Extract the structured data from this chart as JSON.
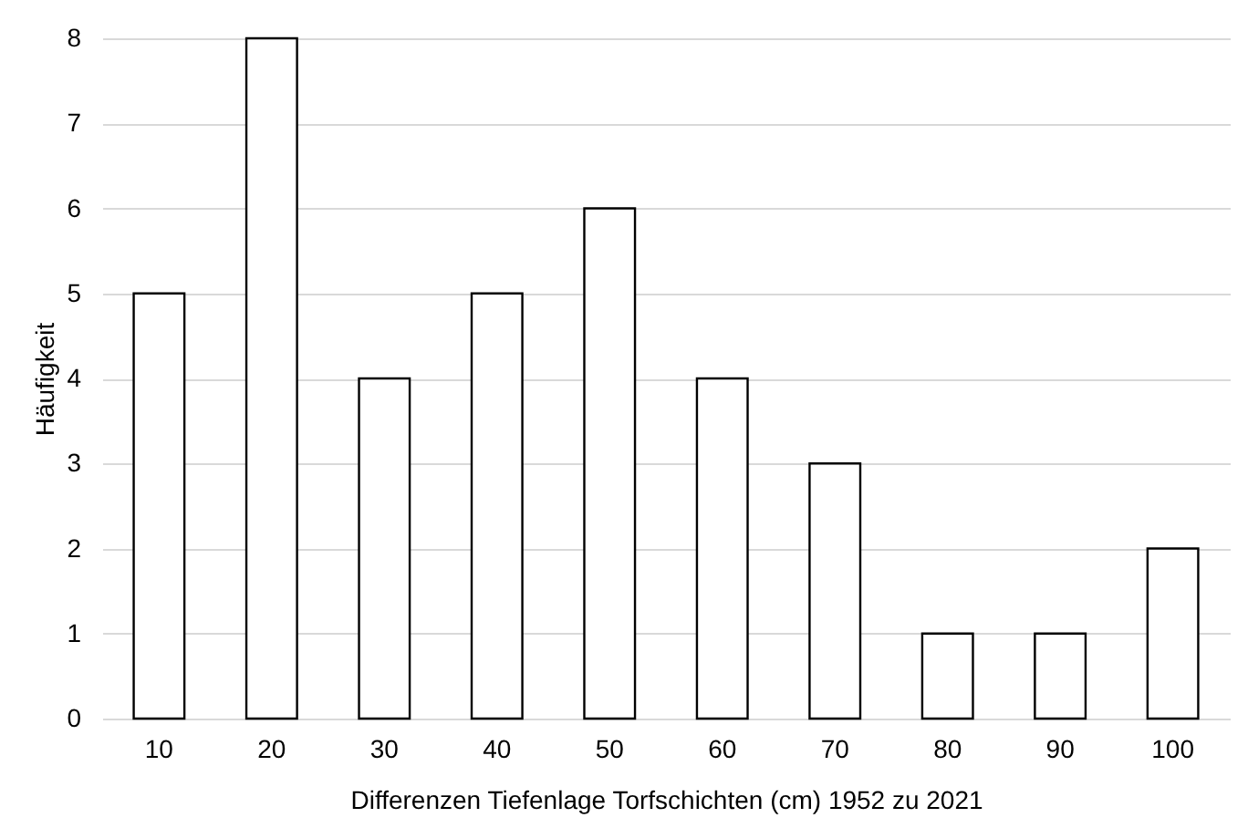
{
  "chart_data": {
    "type": "bar",
    "xlabel": "Differenzen Tiefenlage Torfschichten (cm) 1952 zu 2021",
    "ylabel": "Häufigkeit",
    "categories": [
      "10",
      "20",
      "30",
      "40",
      "50",
      "60",
      "70",
      "80",
      "90",
      "100"
    ],
    "values": [
      5,
      8,
      4,
      5,
      6,
      4,
      3,
      1,
      1,
      2
    ],
    "color": "#ffffff",
    "ylim": [
      0,
      8
    ],
    "yticks": [
      0,
      1,
      2,
      3,
      4,
      5,
      6,
      7,
      8
    ],
    "grid": "y"
  }
}
